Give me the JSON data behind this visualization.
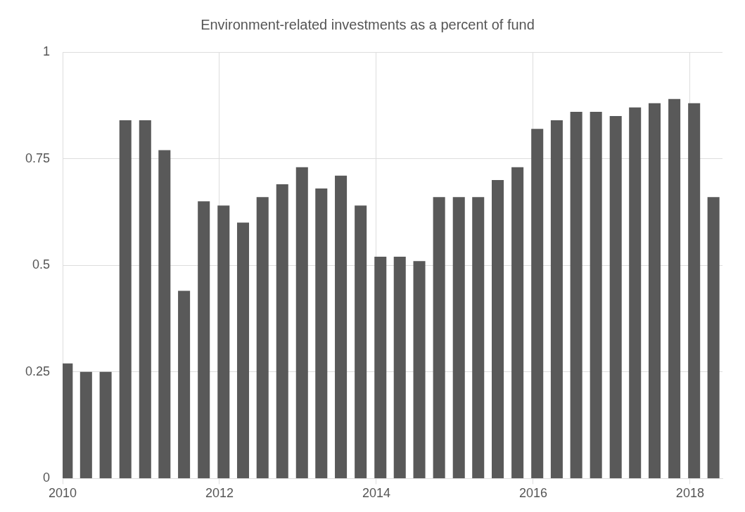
{
  "chart_data": {
    "type": "bar",
    "title": "Environment-related investments as a percent of fund",
    "x": [
      "2010-01-20",
      "2010-04-20",
      "2010-07-20",
      "2010-10-20",
      "2011-01-20",
      "2011-04-20",
      "2011-07-20",
      "2011-10-20",
      "2012-01-20",
      "2012-04-20",
      "2012-07-20",
      "2012-10-20",
      "2013-01-20",
      "2013-04-20",
      "2013-07-20",
      "2013-10-20",
      "2014-01-20",
      "2014-04-20",
      "2014-07-20",
      "2014-10-20",
      "2015-01-20",
      "2015-04-20",
      "2015-07-20",
      "2015-10-20",
      "2016-01-20",
      "2016-04-20",
      "2016-07-20",
      "2016-10-20",
      "2017-01-20",
      "2017-04-20",
      "2017-07-20",
      "2017-10-20",
      "2018-01-20",
      "2018-04-20"
    ],
    "values": [
      0.27,
      0.25,
      0.25,
      0.84,
      0.84,
      0.77,
      0.44,
      0.65,
      0.64,
      0.6,
      0.66,
      0.69,
      0.73,
      0.68,
      0.71,
      0.64,
      0.52,
      0.52,
      0.51,
      0.66,
      0.66,
      0.66,
      0.7,
      0.73,
      0.82,
      0.84,
      0.86,
      0.86,
      0.85,
      0.87,
      0.88,
      0.89,
      0.88,
      0.66
    ],
    "color": "#595959",
    "xlim": [
      "2010-01-01",
      "2018-06-01"
    ],
    "xticks": [
      "2010",
      "2012",
      "2014",
      "2016",
      "2018"
    ],
    "ylim": [
      0,
      1
    ],
    "yticks": [
      0,
      0.25,
      0.5,
      0.75,
      1
    ],
    "grid": true
  }
}
